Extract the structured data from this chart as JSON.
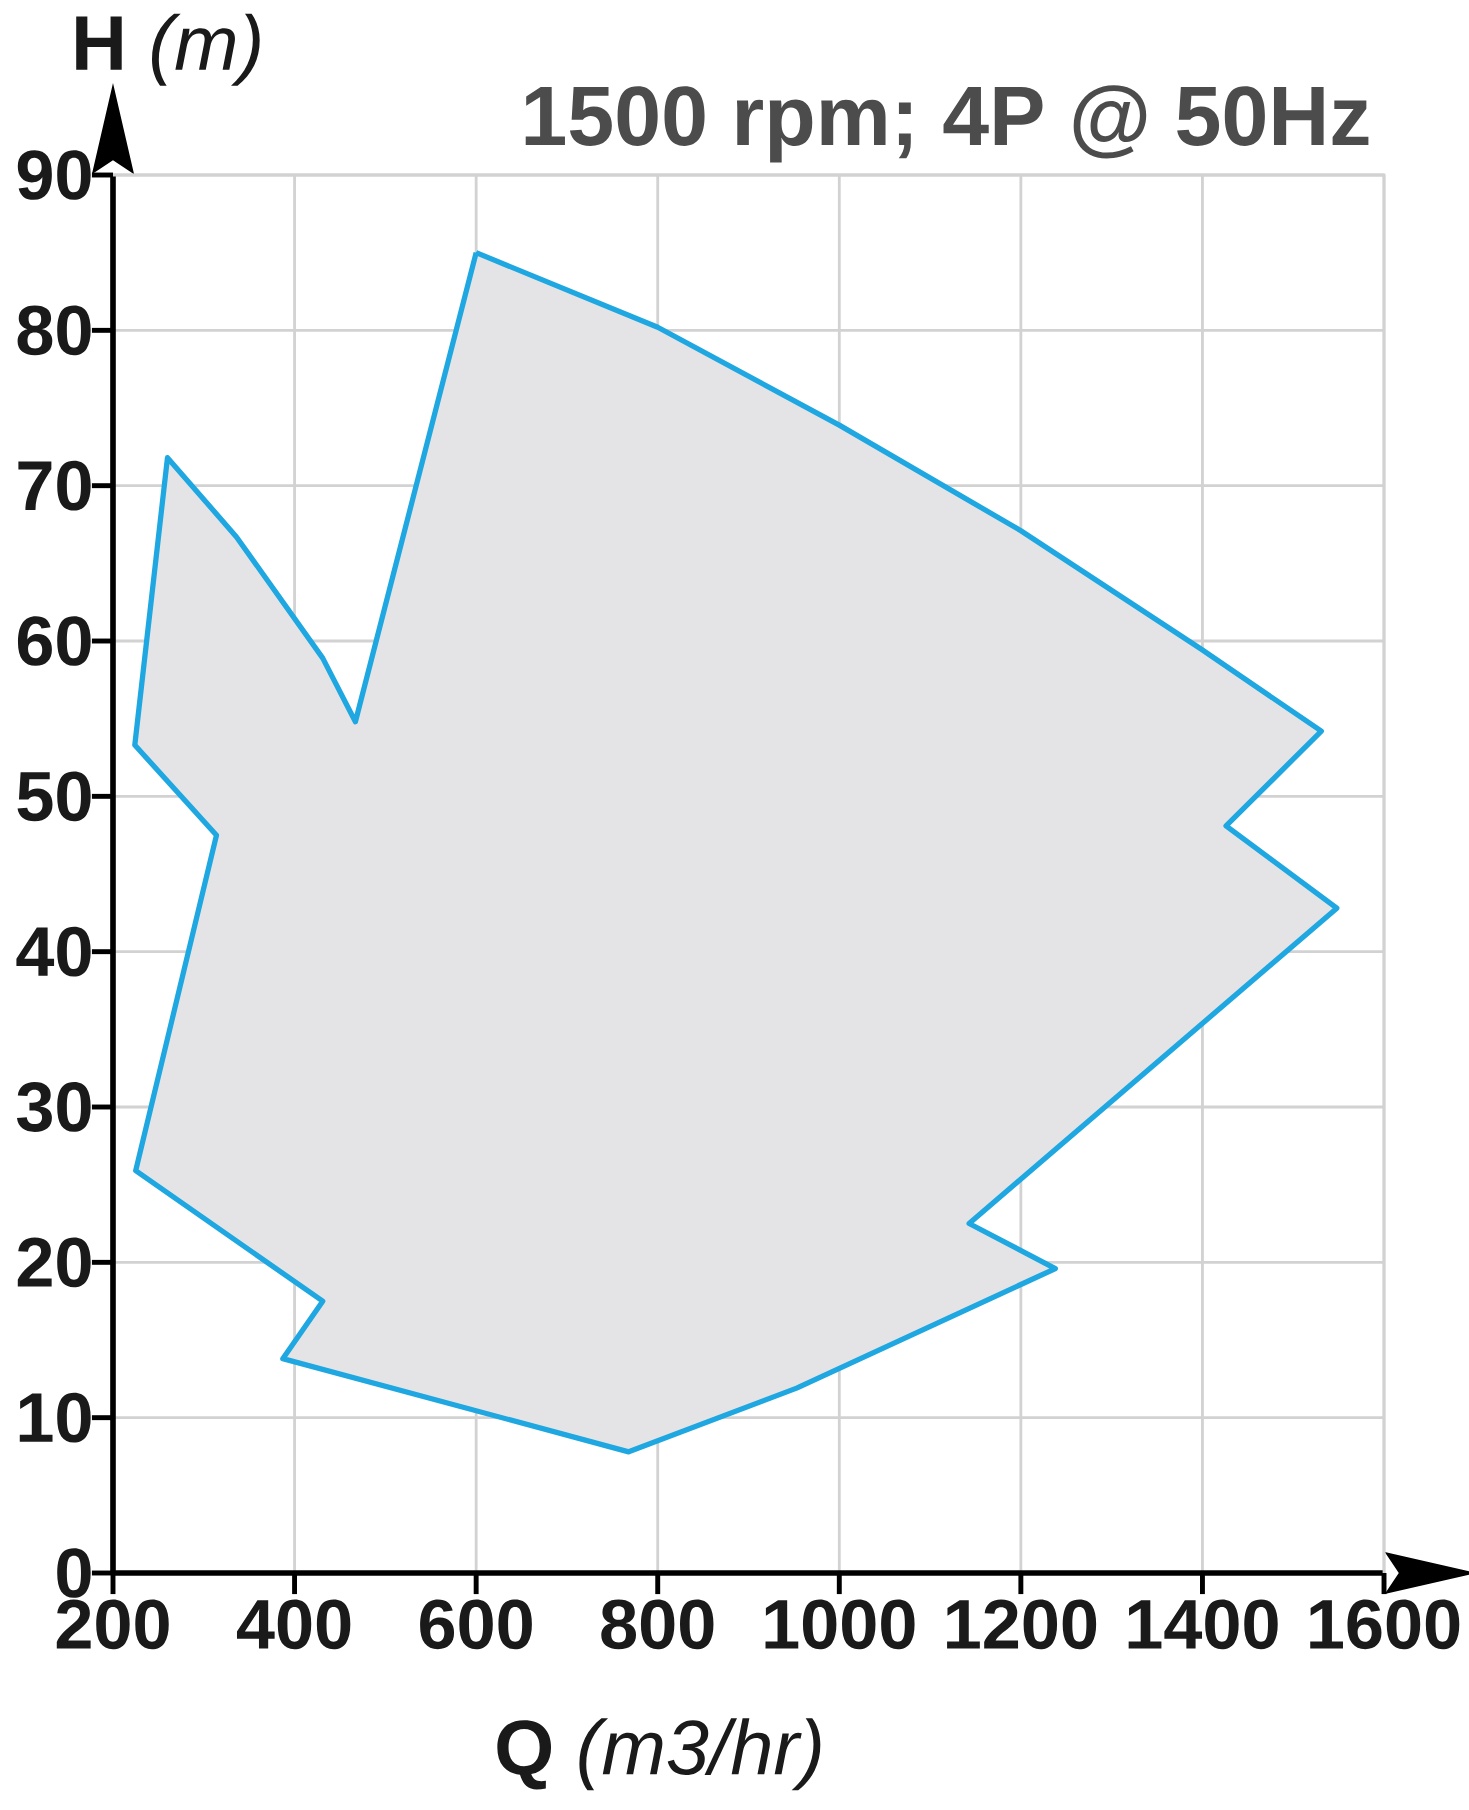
{
  "chart_data": {
    "type": "area",
    "title": "1500 rpm; 4P @ 50Hz",
    "xlabel": "**Q** *(m3/hr)*",
    "ylabel": "**H** *(m)*",
    "xlim": [
      200,
      1600
    ],
    "xticks": [
      200,
      400,
      600,
      800,
      1000,
      1200,
      1400,
      1600
    ],
    "ylim": [
      0,
      90
    ],
    "yticks": [
      0,
      10,
      20,
      30,
      40,
      50,
      60,
      70,
      80,
      90
    ],
    "grid": true,
    "series": [
      {
        "color": "#1ea7e0",
        "x": [
          600,
          800,
          1000,
          1200,
          1398,
          1531,
          1426,
          1548,
          1143,
          1238,
          953,
          768,
          387,
          431,
          225,
          314,
          224,
          260,
          336,
          431,
          467,
          600
        ],
        "values": [
          85,
          80.2,
          73.9,
          67.1,
          59.5,
          54.2,
          48.1,
          42.8,
          22.5,
          19.6,
          11.9,
          7.8,
          13.8,
          17.5,
          25.9,
          47.5,
          53.3,
          71.8,
          66.7,
          58.9,
          54.8,
          85
        ]
      }
    ]
  }
}
